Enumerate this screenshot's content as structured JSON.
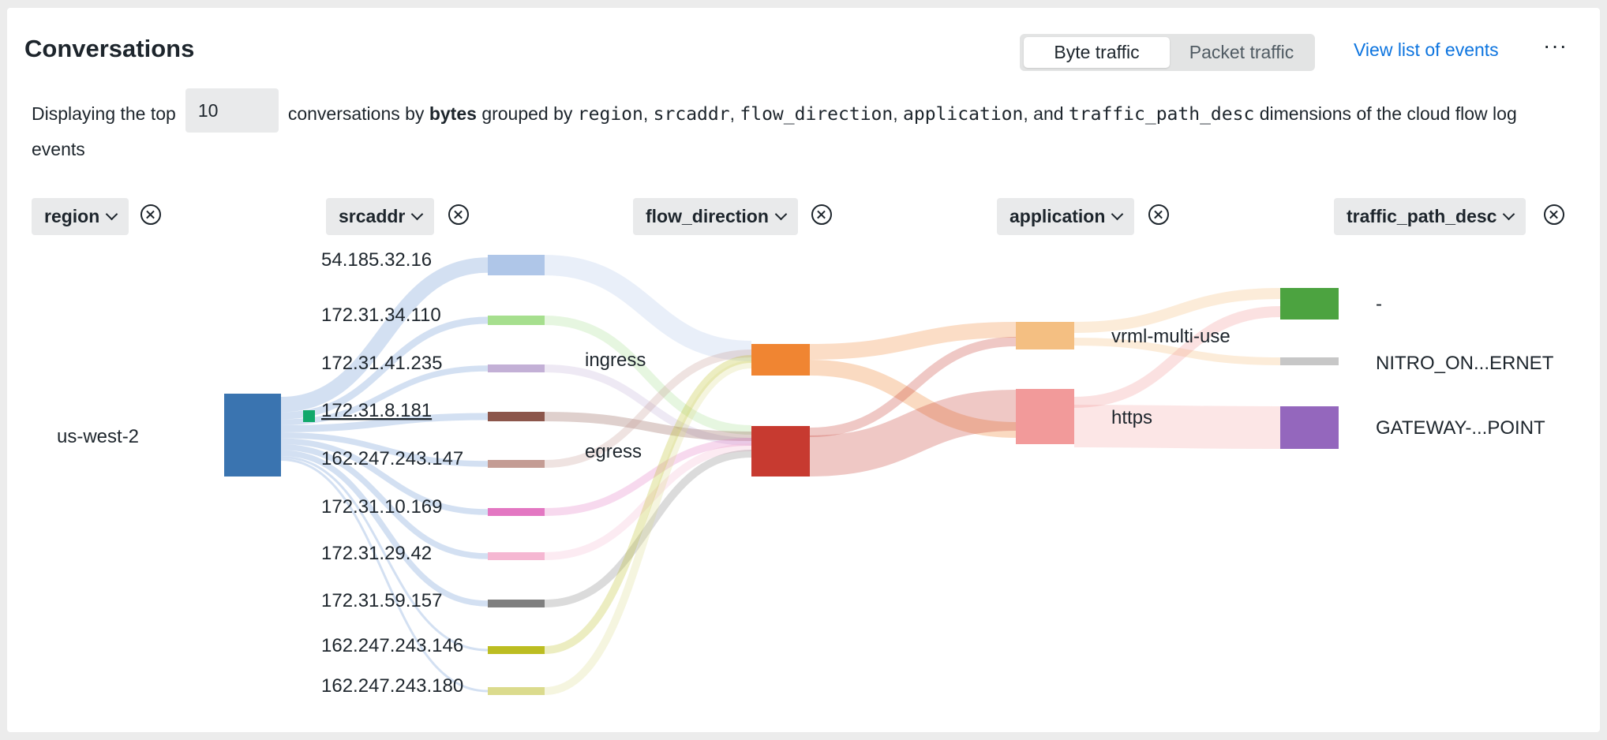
{
  "header": {
    "title": "Conversations",
    "toggle": {
      "byte_label": "Byte traffic",
      "packet_label": "Packet traffic",
      "selected": "Byte traffic"
    },
    "view_events_link": "View list of events",
    "more_icon": "ellipsis-icon"
  },
  "description": {
    "prefix": "Displaying the top",
    "top_n": "10",
    "middle": "conversations by",
    "metric": "bytes",
    "grouped_by": "grouped by",
    "dims": [
      "region",
      "srcaddr",
      "flow_direction",
      "application",
      "traffic_path_desc"
    ],
    "and": "and",
    "suffix": "dimensions of the cloud flow log",
    "suffix_l2": "events"
  },
  "dimensions": [
    {
      "label": "region"
    },
    {
      "label": "srcaddr"
    },
    {
      "label": "flow_direction"
    },
    {
      "label": "application"
    },
    {
      "label": "traffic_path_desc"
    }
  ],
  "sankey": {
    "columns": {
      "region": [
        {
          "label": "us-west-2",
          "color": "#3a74b0"
        }
      ],
      "srcaddr": [
        {
          "label": "54.185.32.16",
          "color": "#afc6e8"
        },
        {
          "label": "172.31.34.110",
          "color": "#a6df8e"
        },
        {
          "label": "172.31.41.235",
          "color": "#c3b0d6"
        },
        {
          "label": "172.31.8.181",
          "color": "#8c564b"
        },
        {
          "label": "162.247.243.147",
          "color": "#c49c94"
        },
        {
          "label": "172.31.10.169",
          "color": "#e377c2"
        },
        {
          "label": "172.31.29.42",
          "color": "#f5b7d2"
        },
        {
          "label": "172.31.59.157",
          "color": "#7f7f7f"
        },
        {
          "label": "162.247.243.146",
          "color": "#bcbd22"
        },
        {
          "label": "162.247.243.180",
          "color": "#dbdb8d"
        }
      ],
      "flow_direction": [
        {
          "label": "ingress",
          "color": "#f08532"
        },
        {
          "label": "egress",
          "color": "#c73a30"
        }
      ],
      "application": [
        {
          "label": "vrml-multi-use",
          "color": "#f4bf82"
        },
        {
          "label": "https",
          "color": "#f29a9a"
        }
      ],
      "traffic_path_desc": [
        {
          "label": "-",
          "color": "#4ca340"
        },
        {
          "label": "NITRO_ON...ERNET",
          "color": "#c7c7c7"
        },
        {
          "label": "GATEWAY-...POINT",
          "color": "#9467bd"
        }
      ]
    },
    "hovered_legend_color": "#12a86b"
  }
}
